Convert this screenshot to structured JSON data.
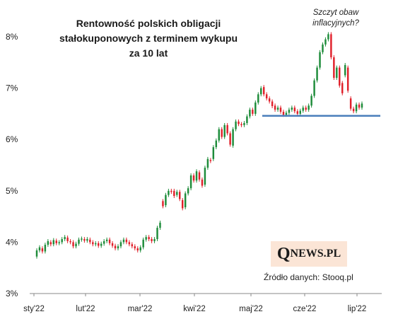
{
  "chart_data": {
    "type": "candlestick",
    "title_lines": [
      "Rentowność polskich obligacji",
      "stałokuponowych  z terminem wykupu",
      "za 10 lat"
    ],
    "y_ticks": [
      "3%",
      "4%",
      "5%",
      "6%",
      "7%",
      "8%"
    ],
    "ylim": [
      3,
      8.4
    ],
    "x_ticks": [
      "sty'22",
      "lut'22",
      "mar'22",
      "kwi'22",
      "maj'22",
      "cze'22",
      "lip'22"
    ],
    "annotation_lines": [
      "Szczyt  obaw",
      "inflacyjnych?"
    ],
    "support_level": 6.46,
    "colors": {
      "up": "#1e8c3a",
      "down": "#e0202a",
      "support_line": "#4a7ebb",
      "axis": "#888888"
    },
    "candles": [
      {
        "o": 3.72,
        "c": 3.84
      },
      {
        "o": 3.84,
        "c": 3.9
      },
      {
        "o": 3.88,
        "c": 3.82
      },
      {
        "o": 3.82,
        "c": 3.95
      },
      {
        "o": 3.95,
        "c": 4.02
      },
      {
        "o": 4.0,
        "c": 3.96
      },
      {
        "o": 3.96,
        "c": 4.04
      },
      {
        "o": 4.03,
        "c": 3.98
      },
      {
        "o": 3.98,
        "c": 4.0
      },
      {
        "o": 4.0,
        "c": 4.06
      },
      {
        "o": 4.06,
        "c": 4.1
      },
      {
        "o": 4.09,
        "c": 4.02
      },
      {
        "o": 4.02,
        "c": 4.0
      },
      {
        "o": 4.0,
        "c": 3.92
      },
      {
        "o": 3.92,
        "c": 3.97
      },
      {
        "o": 3.97,
        "c": 4.05
      },
      {
        "o": 4.05,
        "c": 4.07
      },
      {
        "o": 4.06,
        "c": 4.03
      },
      {
        "o": 4.03,
        "c": 4.06
      },
      {
        "o": 4.05,
        "c": 4.0
      },
      {
        "o": 4.0,
        "c": 3.96
      },
      {
        "o": 3.96,
        "c": 3.98
      },
      {
        "o": 3.98,
        "c": 3.93
      },
      {
        "o": 3.93,
        "c": 3.97
      },
      {
        "o": 3.97,
        "c": 4.02
      },
      {
        "o": 4.02,
        "c": 4.05
      },
      {
        "o": 4.05,
        "c": 3.98
      },
      {
        "o": 3.98,
        "c": 3.93
      },
      {
        "o": 3.93,
        "c": 3.88
      },
      {
        "o": 3.88,
        "c": 3.92
      },
      {
        "o": 3.92,
        "c": 4.0
      },
      {
        "o": 4.0,
        "c": 4.05
      },
      {
        "o": 4.05,
        "c": 4.0
      },
      {
        "o": 4.0,
        "c": 3.96
      },
      {
        "o": 3.96,
        "c": 3.92
      },
      {
        "o": 3.92,
        "c": 3.88
      },
      {
        "o": 3.88,
        "c": 3.84
      },
      {
        "o": 3.84,
        "c": 3.9
      },
      {
        "o": 3.9,
        "c": 4.05
      },
      {
        "o": 4.05,
        "c": 4.1
      },
      {
        "o": 4.1,
        "c": 4.06
      },
      {
        "o": 4.06,
        "c": 4.02
      },
      {
        "o": 4.02,
        "c": 4.06
      },
      {
        "o": 4.06,
        "c": 4.28
      },
      {
        "o": 4.28,
        "c": 4.38
      },
      {
        "o": 4.8,
        "c": 4.7
      },
      {
        "o": 4.72,
        "c": 4.92
      },
      {
        "o": 4.92,
        "c": 5.0
      },
      {
        "o": 5.0,
        "c": 4.98
      },
      {
        "o": 5.0,
        "c": 4.9
      },
      {
        "o": 4.92,
        "c": 4.98
      },
      {
        "o": 4.98,
        "c": 4.84
      },
      {
        "o": 4.82,
        "c": 4.66
      },
      {
        "o": 4.68,
        "c": 4.95
      },
      {
        "o": 4.95,
        "c": 5.05
      },
      {
        "o": 5.05,
        "c": 5.3
      },
      {
        "o": 5.3,
        "c": 5.2
      },
      {
        "o": 5.2,
        "c": 5.38
      },
      {
        "o": 5.36,
        "c": 5.22
      },
      {
        "o": 5.22,
        "c": 5.1
      },
      {
        "o": 5.12,
        "c": 5.45
      },
      {
        "o": 5.45,
        "c": 5.62
      },
      {
        "o": 5.6,
        "c": 5.58
      },
      {
        "o": 5.62,
        "c": 5.85
      },
      {
        "o": 5.85,
        "c": 5.98
      },
      {
        "o": 5.98,
        "c": 6.2
      },
      {
        "o": 6.2,
        "c": 6.05
      },
      {
        "o": 6.05,
        "c": 6.28
      },
      {
        "o": 6.28,
        "c": 6.12
      },
      {
        "o": 6.12,
        "c": 5.9
      },
      {
        "o": 5.88,
        "c": 6.2
      },
      {
        "o": 6.2,
        "c": 6.35
      },
      {
        "o": 6.35,
        "c": 6.3
      },
      {
        "o": 6.3,
        "c": 6.28
      },
      {
        "o": 6.28,
        "c": 6.32
      },
      {
        "o": 6.32,
        "c": 6.45
      },
      {
        "o": 6.45,
        "c": 6.58
      },
      {
        "o": 6.58,
        "c": 6.5
      },
      {
        "o": 6.5,
        "c": 6.72
      },
      {
        "o": 6.72,
        "c": 6.88
      },
      {
        "o": 6.88,
        "c": 7.0
      },
      {
        "o": 7.02,
        "c": 6.88
      },
      {
        "o": 6.88,
        "c": 6.8
      },
      {
        "o": 6.8,
        "c": 6.74
      },
      {
        "o": 6.74,
        "c": 6.65
      },
      {
        "o": 6.66,
        "c": 6.58
      },
      {
        "o": 6.58,
        "c": 6.62
      },
      {
        "o": 6.62,
        "c": 6.54
      },
      {
        "o": 6.54,
        "c": 6.48
      },
      {
        "o": 6.48,
        "c": 6.52
      },
      {
        "o": 6.52,
        "c": 6.58
      },
      {
        "o": 6.58,
        "c": 6.62
      },
      {
        "o": 6.62,
        "c": 6.55
      },
      {
        "o": 6.55,
        "c": 6.5
      },
      {
        "o": 6.5,
        "c": 6.56
      },
      {
        "o": 6.56,
        "c": 6.62
      },
      {
        "o": 6.62,
        "c": 6.58
      },
      {
        "o": 6.58,
        "c": 6.66
      },
      {
        "o": 6.66,
        "c": 6.85
      },
      {
        "o": 6.85,
        "c": 7.15
      },
      {
        "o": 7.15,
        "c": 7.4
      },
      {
        "o": 7.4,
        "c": 7.7
      },
      {
        "o": 7.7,
        "c": 7.85
      },
      {
        "o": 7.85,
        "c": 7.95
      },
      {
        "o": 7.95,
        "c": 8.05
      },
      {
        "o": 8.05,
        "c": 7.6
      },
      {
        "o": 7.6,
        "c": 7.2
      },
      {
        "o": 7.2,
        "c": 7.4
      },
      {
        "o": 7.4,
        "c": 7.05
      },
      {
        "o": 7.1,
        "c": 6.9
      },
      {
        "o": 7.25,
        "c": 7.45
      },
      {
        "o": 7.4,
        "c": 6.95
      },
      {
        "o": 6.8,
        "c": 6.6
      },
      {
        "o": 6.6,
        "c": 6.55
      },
      {
        "o": 6.55,
        "c": 6.68
      },
      {
        "o": 6.68,
        "c": 6.62
      },
      {
        "o": 6.62,
        "c": 6.7
      }
    ]
  },
  "source_text": "Źródło danych: Stooq.pl",
  "logo": {
    "first_letter": "Q",
    "rest": "NEWS.PL"
  }
}
